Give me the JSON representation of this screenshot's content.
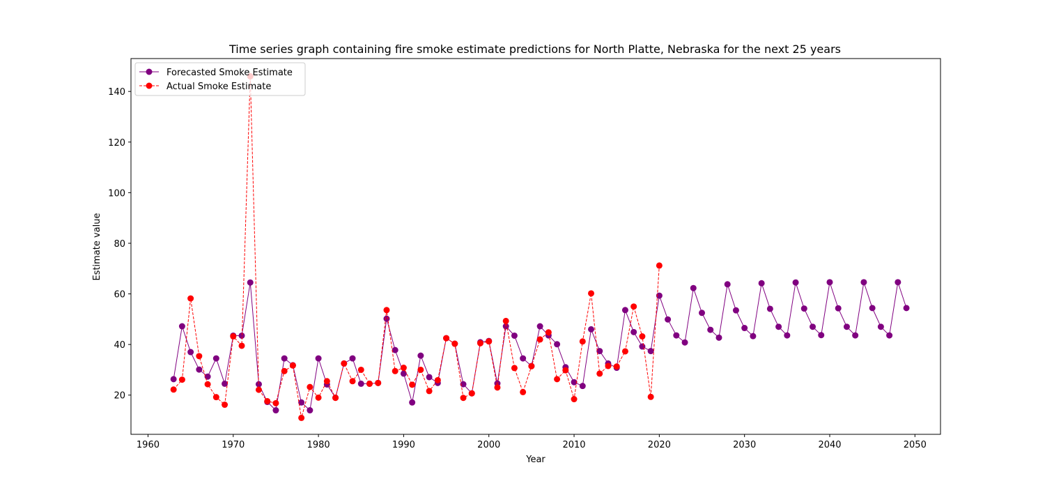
{
  "chart_data": {
    "type": "line",
    "title": "Time series graph containing fire smoke estimate predictions for North Platte, Nebraska for the next 25 years",
    "xlabel": "Year",
    "ylabel": "Estimate value",
    "xlim": [
      1958,
      2053
    ],
    "ylim": [
      4.5,
      153
    ],
    "xticks": [
      1960,
      1970,
      1980,
      1990,
      2000,
      2010,
      2020,
      2030,
      2040,
      2050
    ],
    "yticks": [
      20,
      40,
      60,
      80,
      100,
      120,
      140
    ],
    "grid": false,
    "legend_position": "top-left",
    "series": [
      {
        "name": "Forecasted Smoke Estimate",
        "color": "#800080",
        "style": "solid",
        "x_start": 1963,
        "values": [
          26.3,
          47.2,
          37.0,
          30.1,
          27.3,
          34.5,
          24.5,
          43.5,
          43.5,
          64.5,
          24.3,
          17.3,
          14.0,
          34.5,
          31.8,
          17.1,
          14.0,
          34.5,
          24.2,
          19.0,
          32.5,
          34.5,
          24.5,
          24.5,
          24.8,
          50.2,
          37.8,
          28.5,
          17.1,
          35.6,
          27.1,
          24.8,
          42.5,
          40.3,
          24.3,
          20.7,
          40.9,
          41.4,
          24.6,
          47.2,
          43.5,
          34.5,
          31.5,
          47.2,
          43.6,
          40.1,
          31.0,
          25.1,
          23.6,
          46.0,
          37.4,
          32.5,
          30.8,
          53.6,
          44.9,
          39.2,
          37.4,
          59.3,
          49.9,
          43.6,
          40.8,
          62.3,
          52.5,
          45.8,
          42.7,
          63.8,
          53.5,
          46.5,
          43.3,
          64.2,
          54.1,
          47.0,
          43.6,
          64.5,
          54.2,
          47.0,
          43.7,
          64.6,
          54.3,
          47.0,
          43.6,
          64.6,
          54.4,
          47.0,
          43.6,
          64.6,
          54.4
        ]
      },
      {
        "name": "Actual Smoke Estimate",
        "color": "#ff0000",
        "style": "dashed",
        "x_start": 1963,
        "values": [
          22.2,
          26.1,
          58.2,
          35.4,
          24.3,
          19.2,
          16.2,
          43.2,
          39.5,
          146.0,
          22.1,
          17.6,
          16.8,
          29.5,
          31.7,
          11.0,
          23.2,
          19.0,
          25.5,
          18.9,
          32.5,
          25.5,
          30.0,
          24.5,
          24.8,
          53.6,
          29.5,
          30.8,
          24.1,
          30.0,
          21.6,
          25.9,
          42.5,
          40.3,
          18.9,
          20.7,
          40.5,
          41.2,
          23.0,
          49.3,
          30.7,
          21.2,
          31.4,
          42.0,
          44.8,
          26.3,
          29.8,
          18.4,
          41.2,
          60.2,
          28.5,
          31.5,
          31.3,
          37.3,
          55.0,
          43.2,
          19.3,
          71.2
        ]
      }
    ]
  }
}
